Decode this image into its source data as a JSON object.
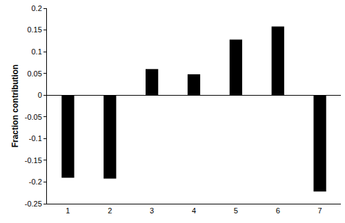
{
  "chart_data": {
    "type": "bar",
    "y_label": "Fraction contribution",
    "categories": [
      "1",
      "2",
      "3",
      "4",
      "5",
      "6",
      "7"
    ],
    "values": [
      -0.19,
      -0.192,
      0.06,
      0.048,
      0.128,
      0.158,
      -0.222
    ],
    "color": "#000000",
    "ylim": [
      -0.25,
      0.2
    ],
    "yticks": [
      -0.25,
      -0.2,
      -0.15,
      -0.1,
      -0.05,
      0,
      0.05,
      0.1,
      0.15,
      0.2
    ],
    "grid": false
  }
}
